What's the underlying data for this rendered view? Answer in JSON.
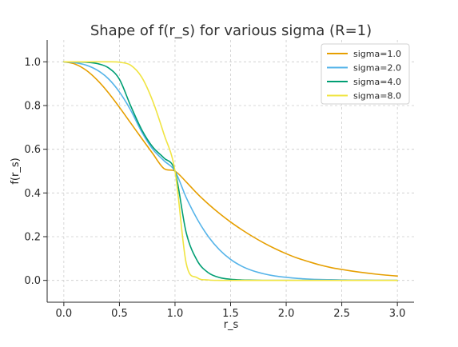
{
  "chart_data": {
    "type": "line",
    "title": "Shape of f(r_s) for various sigma (R=1)",
    "xlabel": "r_s",
    "ylabel": "f(r_s)",
    "xlim": [
      -0.15,
      3.15
    ],
    "ylim": [
      -0.1,
      1.1
    ],
    "xticks": [
      0.0,
      0.5,
      1.0,
      1.5,
      2.0,
      2.5,
      3.0
    ],
    "xtick_labels": [
      "0.0",
      "0.5",
      "1.0",
      "1.5",
      "2.0",
      "2.5",
      "3.0"
    ],
    "yticks": [
      0.0,
      0.2,
      0.4,
      0.6,
      0.8,
      1.0
    ],
    "ytick_labels": [
      "0.0",
      "0.2",
      "0.4",
      "0.6",
      "0.8",
      "1.0"
    ],
    "grid": true,
    "legend_position": "top-right",
    "x": [
      0.0,
      0.1,
      0.2,
      0.3,
      0.4,
      0.5,
      0.6,
      0.7,
      0.8,
      0.9,
      1.0,
      1.1,
      1.2,
      1.3,
      1.4,
      1.5,
      1.6,
      1.7,
      1.8,
      1.9,
      2.0,
      2.1,
      2.2,
      2.3,
      2.4,
      2.5,
      2.6,
      2.7,
      2.8,
      2.9,
      3.0
    ],
    "series": [
      {
        "name": "sigma=1.0",
        "color": "#E69F00",
        "values": [
          1.0,
          0.99,
          0.962,
          0.917,
          0.859,
          0.792,
          0.721,
          0.65,
          0.58,
          0.512,
          0.5,
          0.451,
          0.397,
          0.349,
          0.306,
          0.267,
          0.232,
          0.2,
          0.171,
          0.145,
          0.122,
          0.102,
          0.086,
          0.071,
          0.059,
          0.05,
          0.042,
          0.035,
          0.029,
          0.024,
          0.02
        ]
      },
      {
        "name": "sigma=2.0",
        "color": "#56B4E9",
        "values": [
          1.0,
          0.996,
          0.985,
          0.962,
          0.923,
          0.862,
          0.78,
          0.68,
          0.6,
          0.548,
          0.5,
          0.38,
          0.28,
          0.2,
          0.14,
          0.096,
          0.065,
          0.044,
          0.03,
          0.02,
          0.014,
          0.009,
          0.006,
          0.004,
          0.003,
          0.002,
          0.001,
          0.001,
          0.0,
          0.0,
          0.0
        ]
      },
      {
        "name": "sigma=4.0",
        "color": "#009E73",
        "values": [
          1.0,
          1.0,
          0.998,
          0.992,
          0.973,
          0.92,
          0.8,
          0.69,
          0.61,
          0.56,
          0.5,
          0.22,
          0.09,
          0.035,
          0.013,
          0.005,
          0.002,
          0.001,
          0.0,
          0.0,
          0.0,
          0.0,
          0.0,
          0.0,
          0.0,
          0.0,
          0.0,
          0.0,
          0.0,
          0.0,
          0.0
        ]
      },
      {
        "name": "sigma=8.0",
        "color": "#F0E442",
        "values": [
          1.0,
          1.0,
          1.0,
          1.0,
          1.0,
          0.998,
          0.985,
          0.93,
          0.82,
          0.67,
          0.5,
          0.08,
          0.012,
          0.002,
          0.0,
          0.0,
          0.0,
          0.0,
          0.0,
          0.0,
          0.0,
          0.0,
          0.0,
          0.0,
          0.0,
          0.0,
          0.0,
          0.0,
          0.0,
          0.0,
          0.0
        ]
      }
    ]
  }
}
